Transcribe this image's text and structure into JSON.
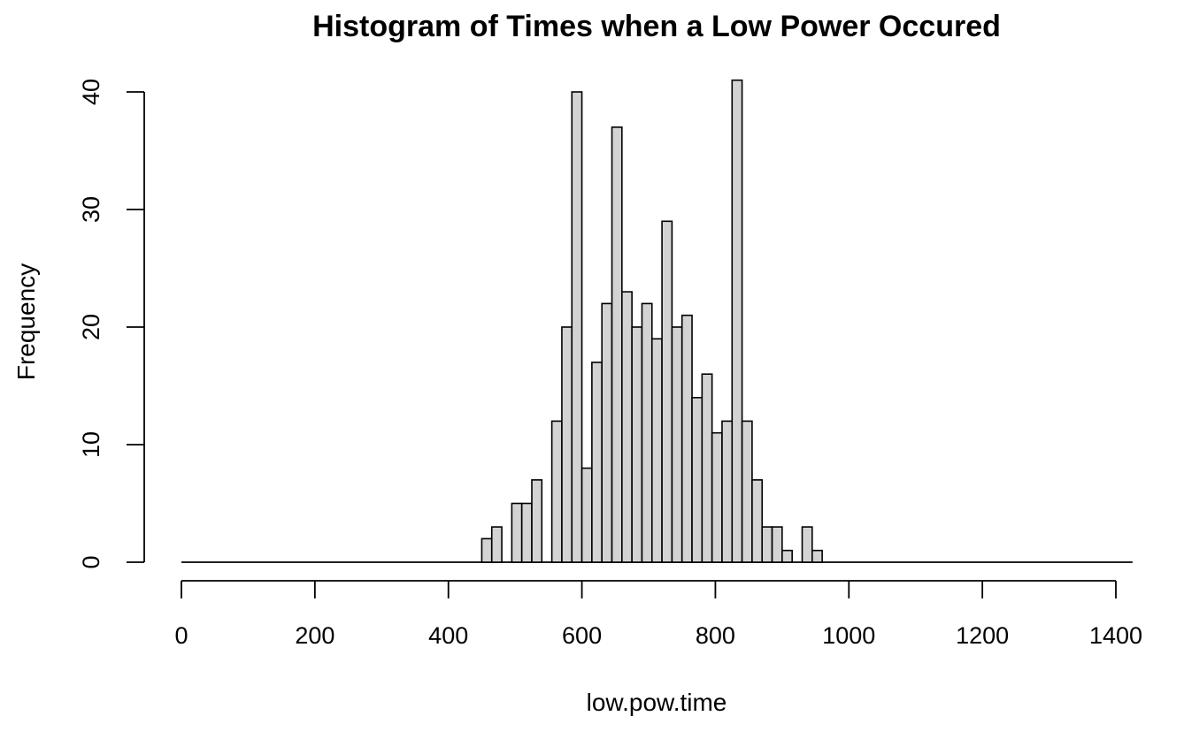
{
  "chart_data": {
    "type": "bar",
    "title": "Histogram of Times when a Low Power Occured",
    "xlabel": "low.pow.time",
    "ylabel": "Frequency",
    "bin_width": 15,
    "x_range": [
      0,
      1425
    ],
    "xlim": [
      0,
      1400
    ],
    "ylim": [
      0,
      40
    ],
    "x_ticks": [
      0,
      200,
      400,
      600,
      800,
      1000,
      1200,
      1400
    ],
    "y_ticks": [
      0,
      10,
      20,
      30,
      40
    ],
    "grid": false,
    "bar_color": "#d3d3d3",
    "bins": [
      {
        "start": 450,
        "end": 465,
        "count": 2
      },
      {
        "start": 465,
        "end": 480,
        "count": 3
      },
      {
        "start": 480,
        "end": 495,
        "count": 0
      },
      {
        "start": 495,
        "end": 510,
        "count": 5
      },
      {
        "start": 510,
        "end": 525,
        "count": 5
      },
      {
        "start": 525,
        "end": 540,
        "count": 7
      },
      {
        "start": 540,
        "end": 555,
        "count": 0
      },
      {
        "start": 555,
        "end": 570,
        "count": 12
      },
      {
        "start": 570,
        "end": 585,
        "count": 20
      },
      {
        "start": 585,
        "end": 600,
        "count": 40
      },
      {
        "start": 600,
        "end": 615,
        "count": 8
      },
      {
        "start": 615,
        "end": 630,
        "count": 17
      },
      {
        "start": 630,
        "end": 645,
        "count": 22
      },
      {
        "start": 645,
        "end": 660,
        "count": 37
      },
      {
        "start": 660,
        "end": 675,
        "count": 23
      },
      {
        "start": 675,
        "end": 690,
        "count": 20
      },
      {
        "start": 690,
        "end": 705,
        "count": 22
      },
      {
        "start": 705,
        "end": 720,
        "count": 19
      },
      {
        "start": 720,
        "end": 735,
        "count": 29
      },
      {
        "start": 735,
        "end": 750,
        "count": 20
      },
      {
        "start": 750,
        "end": 765,
        "count": 21
      },
      {
        "start": 765,
        "end": 780,
        "count": 14
      },
      {
        "start": 780,
        "end": 795,
        "count": 16
      },
      {
        "start": 795,
        "end": 810,
        "count": 11
      },
      {
        "start": 810,
        "end": 825,
        "count": 12
      },
      {
        "start": 825,
        "end": 840,
        "count": 41
      },
      {
        "start": 840,
        "end": 855,
        "count": 12
      },
      {
        "start": 855,
        "end": 870,
        "count": 7
      },
      {
        "start": 870,
        "end": 885,
        "count": 3
      },
      {
        "start": 885,
        "end": 900,
        "count": 3
      },
      {
        "start": 900,
        "end": 915,
        "count": 1
      },
      {
        "start": 915,
        "end": 930,
        "count": 0
      },
      {
        "start": 930,
        "end": 945,
        "count": 3
      },
      {
        "start": 945,
        "end": 960,
        "count": 1
      }
    ]
  }
}
